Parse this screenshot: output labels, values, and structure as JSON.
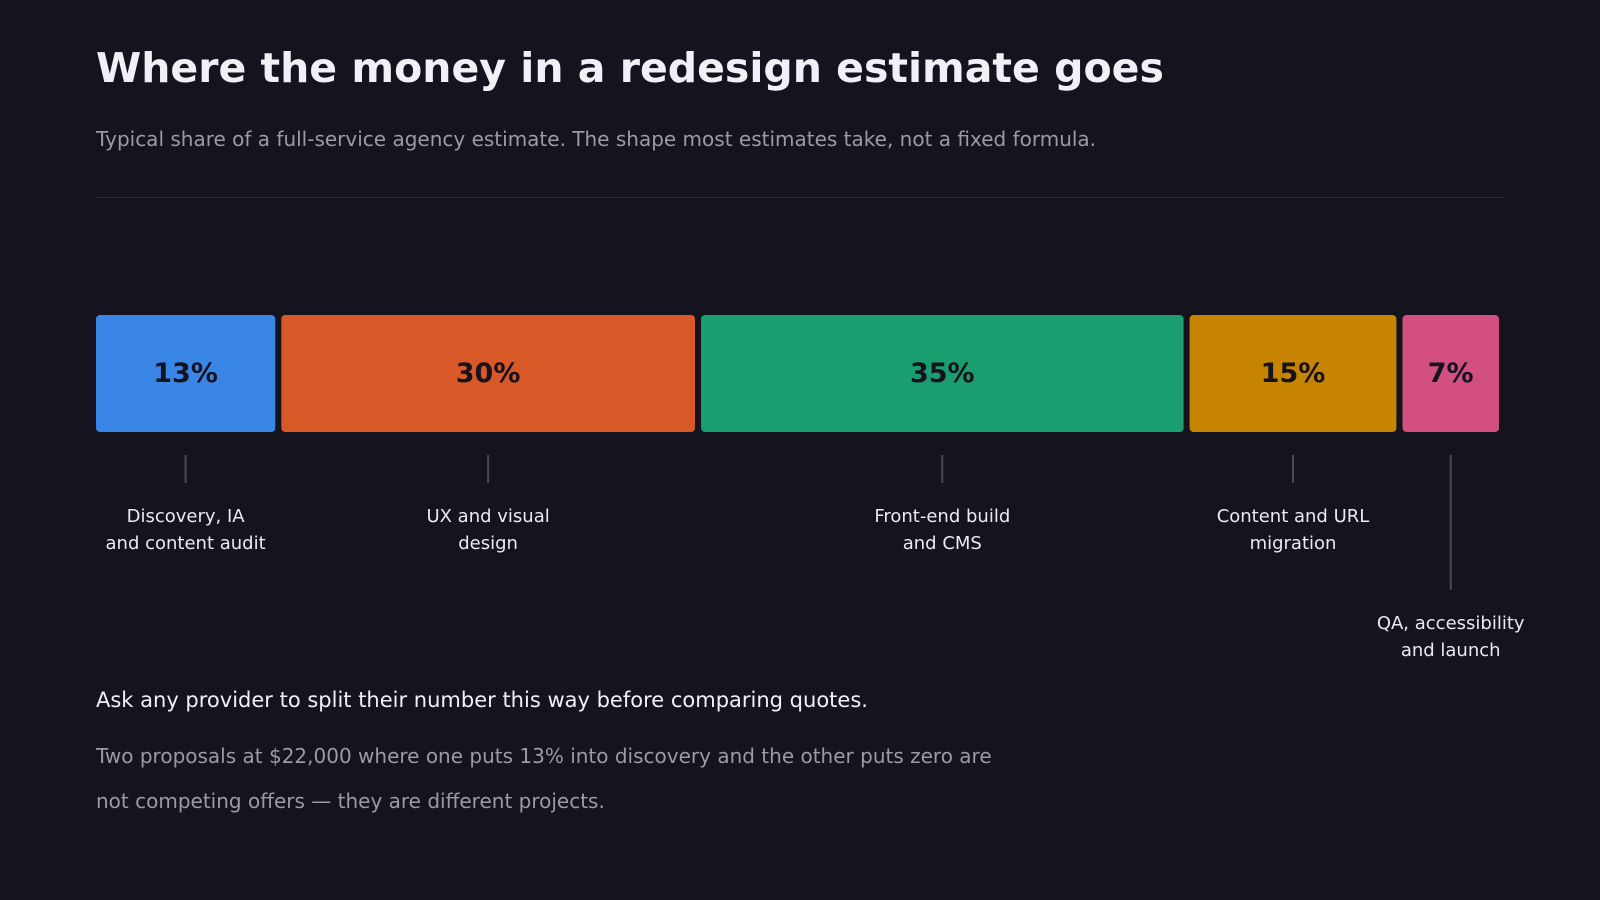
{
  "header": {
    "title": "Where the money in a redesign estimate goes",
    "subtitle": "Typical share of a full-service agency estimate. The shape most estimates take, not a fixed formula."
  },
  "chart_data": {
    "type": "bar",
    "orientation": "horizontal-stacked",
    "unit": "%",
    "categories": [
      "Discovery, IA and content audit",
      "UX and visual design",
      "Front-end build and CMS",
      "Content and URL migration",
      "QA, accessibility and launch"
    ],
    "label_lines": [
      [
        "Discovery, IA",
        "and content audit"
      ],
      [
        "UX and visual",
        "design"
      ],
      [
        "Front-end build",
        "and CMS"
      ],
      [
        "Content and URL",
        "migration"
      ],
      [
        "QA, accessibility",
        "and launch"
      ]
    ],
    "values": [
      13,
      30,
      35,
      15,
      7
    ],
    "value_labels": [
      "13%",
      "30%",
      "35%",
      "15%",
      "7%"
    ],
    "colors": [
      "#3a86e6",
      "#d95827",
      "#1a9e70",
      "#c78400",
      "#d24f7f"
    ],
    "label_placement": [
      "near",
      "near",
      "near",
      "near",
      "far"
    ],
    "total": 100,
    "grid": false,
    "legend": "none"
  },
  "footer": {
    "lead": "Ask any provider to split their number this way before comparing quotes.",
    "body": "Two proposals at $22,000 where one puts 13% into discovery and the other puts zero are not competing offers — they are different projects."
  },
  "colors": {
    "background": "#15131d",
    "text": "#f2f0f5",
    "muted": "#9c99a8",
    "leader": "#4a4858"
  }
}
